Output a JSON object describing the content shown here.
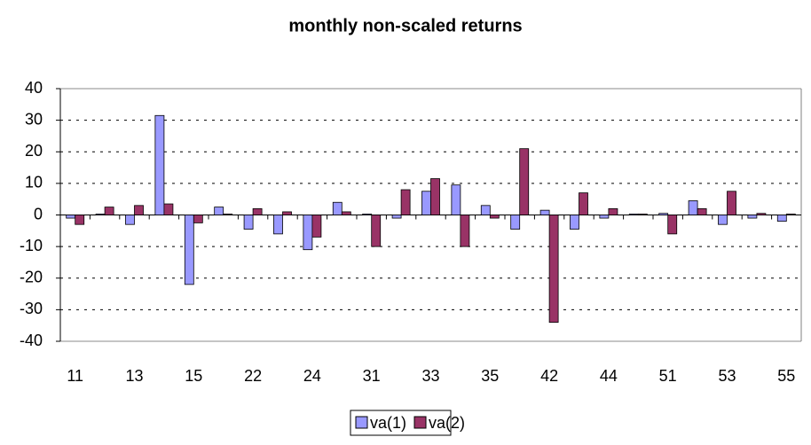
{
  "chart_data": {
    "type": "bar",
    "title": "monthly non-scaled returns",
    "categories": [
      "11",
      null,
      "13",
      null,
      "15",
      null,
      "22",
      null,
      "24",
      null,
      "31",
      null,
      "33",
      null,
      "35",
      null,
      "42",
      null,
      "44",
      null,
      "51",
      null,
      "53",
      null,
      "55"
    ],
    "series": [
      {
        "name": "va(1)",
        "color": "#9999ff",
        "values": [
          -1,
          0.3,
          -3,
          31.5,
          -22,
          2.5,
          -4.5,
          -6,
          -11,
          4,
          0.3,
          -1,
          7.5,
          9.5,
          3,
          -4.5,
          1.5,
          -4.5,
          -1,
          0.3,
          0.5,
          4.5,
          -3,
          -1,
          -2
        ]
      },
      {
        "name": "va(2)",
        "color": "#993366",
        "values": [
          -3,
          2.5,
          3,
          3.5,
          -2.5,
          0.3,
          2,
          1,
          -7,
          1,
          -10,
          8,
          11.5,
          -10,
          -1,
          21,
          -34,
          7,
          2,
          0.3,
          -6,
          2,
          7.5,
          0.5,
          0.3
        ]
      }
    ],
    "ylim": [
      -40,
      40
    ],
    "yticks": [
      -40,
      -30,
      -20,
      -10,
      0,
      10,
      20,
      30,
      40
    ],
    "grid": true,
    "legend": "bottom"
  }
}
